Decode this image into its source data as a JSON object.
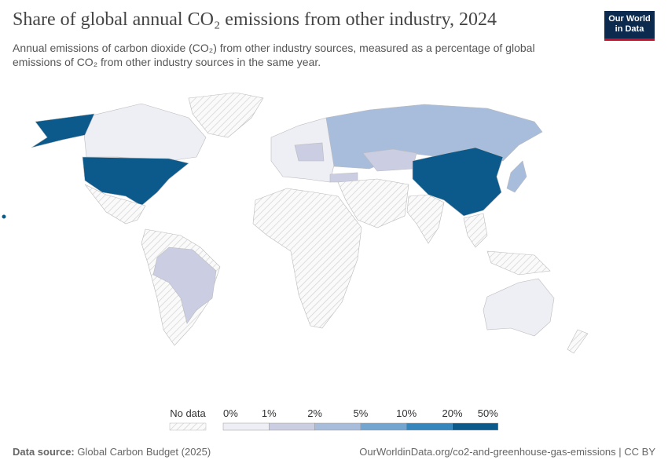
{
  "header": {
    "title": "Share of global annual CO₂ emissions from other industry, 2024",
    "subtitle_lines": [
      "Annual emissions of carbon dioxide (CO₂) from other industry sources, measured as a percentage of global",
      "emissions of CO₂ from other industry sources in the same year."
    ],
    "logo_lines": [
      "Our World",
      "in Data"
    ]
  },
  "legend": {
    "no_data": "No data",
    "labels": [
      "0%",
      "1%",
      "2%",
      "5%",
      "10%",
      "20%",
      "50%"
    ],
    "colors": [
      "#eeeef5",
      "#cbcde3",
      "#a8bcdc",
      "#74a5d0",
      "#3686bd",
      "#0c5a8c"
    ]
  },
  "footer": {
    "source_label": "Data source:",
    "source": "Global Carbon Budget (2025)",
    "url": "OurWorldinData.org/co2-and-greenhouse-gas-emissions | CC BY"
  }
}
